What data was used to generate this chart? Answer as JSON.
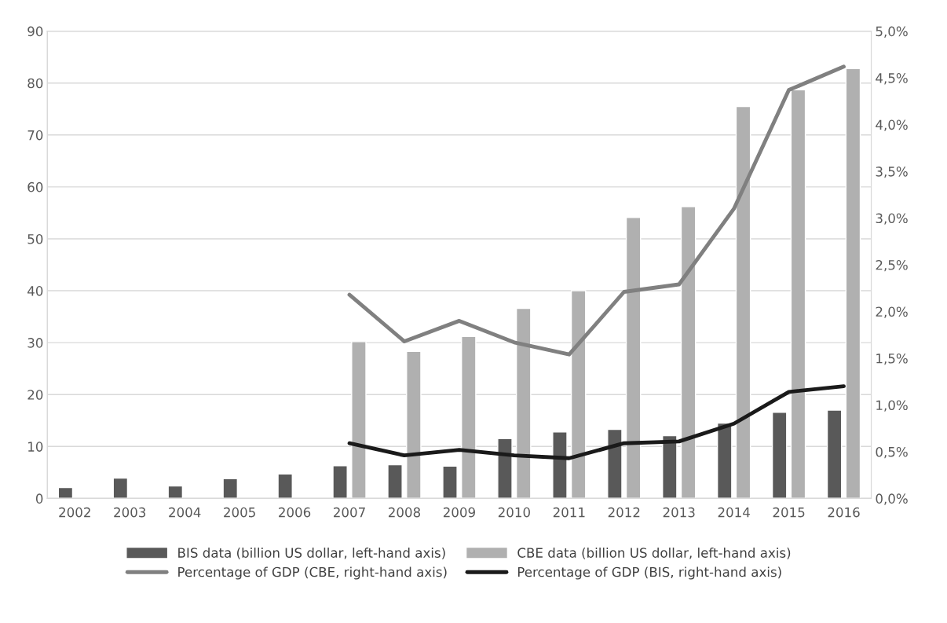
{
  "chart_data": {
    "type": "bar",
    "categories": [
      "2002",
      "2003",
      "2004",
      "2005",
      "2006",
      "2007",
      "2008",
      "2009",
      "2010",
      "2011",
      "2012",
      "2013",
      "2014",
      "2015",
      "2016"
    ],
    "series": [
      {
        "name": "BIS data (billion US dollar, left-hand axis)",
        "color": "#595959",
        "values": [
          2.1,
          3.9,
          2.4,
          3.8,
          4.7,
          6.3,
          6.5,
          6.2,
          11.5,
          12.8,
          13.3,
          12.1,
          14.5,
          16.6,
          17.0
        ]
      },
      {
        "name": "CBE data (billion US dollar, left-hand axis)",
        "color": "#b0b0b0",
        "values": [
          null,
          null,
          null,
          null,
          null,
          30.2,
          28.3,
          31.2,
          36.6,
          40.0,
          54.1,
          56.2,
          75.5,
          78.7,
          82.8
        ]
      },
      {
        "name": "Percentage of GDP (CBE, right-hand axis)",
        "type": "line",
        "axis": "y2",
        "color": "#808080",
        "values": [
          null,
          null,
          null,
          null,
          null,
          2.18,
          1.68,
          1.9,
          1.67,
          1.54,
          2.21,
          2.29,
          3.1,
          4.37,
          4.62
        ]
      },
      {
        "name": "Percentage of GDP (BIS, right-hand axis)",
        "type": "line",
        "axis": "y2",
        "color": "#1a1a1a",
        "values": [
          null,
          null,
          null,
          null,
          null,
          0.59,
          0.46,
          0.52,
          0.46,
          0.43,
          0.59,
          0.61,
          0.8,
          1.14,
          1.2
        ]
      }
    ],
    "ylim": [
      0,
      90
    ],
    "yticks": [
      0,
      10,
      20,
      30,
      40,
      50,
      60,
      70,
      80,
      90
    ],
    "y2lim": [
      0,
      5
    ],
    "y2ticks": [
      {
        "value": 0,
        "label": "0,0%"
      },
      {
        "value": 0.5,
        "label": "0,5%"
      },
      {
        "value": 1,
        "label": "1,0%"
      },
      {
        "value": 1.5,
        "label": "1,5%"
      },
      {
        "value": 2,
        "label": "2,0%"
      },
      {
        "value": 2.5,
        "label": "2,5%"
      },
      {
        "value": 3,
        "label": "3,0%"
      },
      {
        "value": 3.5,
        "label": "3,5%"
      },
      {
        "value": 4,
        "label": "4,0%"
      },
      {
        "value": 4.5,
        "label": "4,5%"
      },
      {
        "value": 5,
        "label": "5,0%"
      }
    ],
    "grid": "y",
    "legend": "bottom",
    "line_style": "solid",
    "marker": "none"
  }
}
